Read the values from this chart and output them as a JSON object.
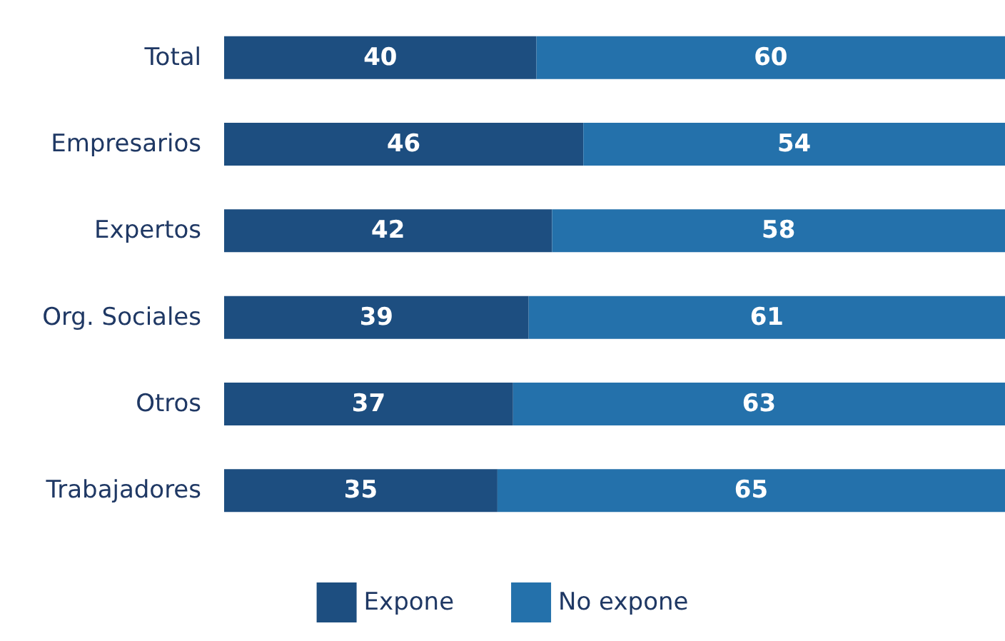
{
  "chart_data": {
    "type": "bar",
    "orientation": "horizontal",
    "stacked": true,
    "categories": [
      "Total",
      "Empresarios",
      "Expertos",
      "Org. Sociales",
      "Otros",
      "Trabajadores"
    ],
    "series": [
      {
        "name": "Expone",
        "color": "#1d4e80",
        "values": [
          40,
          46,
          42,
          39,
          37,
          35
        ]
      },
      {
        "name": "No expone",
        "color": "#2471ab",
        "values": [
          60,
          54,
          58,
          61,
          63,
          65
        ]
      }
    ],
    "data_labels": true,
    "legend": "bottom"
  }
}
